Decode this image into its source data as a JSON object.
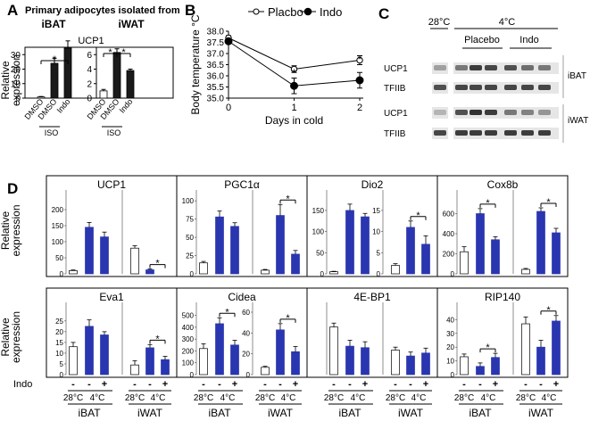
{
  "panel_labels": [
    "A",
    "B",
    "C",
    "D"
  ],
  "chart_data": [
    {
      "panel": "A",
      "type": "bar",
      "title": "Primary adipocytes isolated from",
      "subplot_title": "UCP1",
      "ylabel": "Relative expression",
      "ylim_left": [
        0,
        40
      ],
      "ylim_right": [
        0,
        8
      ],
      "yticks_left": [
        "0",
        "10",
        "20",
        "30"
      ],
      "yticks_right": [
        "0",
        "2",
        "4",
        "6"
      ],
      "groups": [
        {
          "name": "iBAT",
          "categories": [
            "DMSO",
            "DMSO",
            "Indo"
          ],
          "values": [
            0.8,
            24,
            34.5
          ],
          "errors": [
            0.3,
            3.5,
            5
          ],
          "fills": [
            "white",
            "black",
            "black"
          ]
        },
        {
          "name": "iWAT",
          "categories": [
            "DMSO",
            "DMSO",
            "Indo"
          ],
          "values": [
            1.0,
            6.3,
            3.8
          ],
          "errors": [
            0.2,
            0.5,
            0.2
          ],
          "fills": [
            "white",
            "black",
            "black"
          ]
        }
      ],
      "bracket_label": "ISO",
      "significance": "*"
    },
    {
      "panel": "B",
      "type": "line",
      "xlabel": "Days in cold",
      "ylabel": "Body temperature °C",
      "xlim": [
        0,
        2
      ],
      "ylim": [
        35.0,
        38.0
      ],
      "xticks": [
        "0",
        "1",
        "2"
      ],
      "yticks": [
        "35.0",
        "35.5",
        "36.0",
        "36.5",
        "37.0",
        "37.5",
        "38.0"
      ],
      "series": [
        {
          "name": "Placbo",
          "x": [
            0,
            1,
            2
          ],
          "y": [
            37.7,
            36.3,
            36.7
          ],
          "err": [
            0.1,
            0.15,
            0.2
          ],
          "marker": "open"
        },
        {
          "name": "Indo",
          "x": [
            0,
            1,
            2
          ],
          "y": [
            37.55,
            35.55,
            35.8
          ],
          "err": [
            0.1,
            0.35,
            0.35
          ],
          "marker": "filled"
        }
      ],
      "significance": "*"
    },
    {
      "panel": "C",
      "type": "blot",
      "headers": {
        "warm": "28°C",
        "cold": "4°C",
        "placebo": "Placebo",
        "indo": "Indo"
      },
      "rows": [
        {
          "label": "UCP1",
          "tissue": "iBAT"
        },
        {
          "label": "TFIIB",
          "tissue": ""
        },
        {
          "label": "UCP1",
          "tissue": "iWAT"
        },
        {
          "label": "TFIIB",
          "tissue": ""
        }
      ]
    },
    {
      "panel": "D",
      "type": "bar",
      "ylabel": "Relative expression",
      "indo_label": "Indo",
      "indo_marks": [
        "-",
        "-",
        "+",
        "-",
        "-",
        "+"
      ],
      "temp_labels": [
        "28°C",
        "4°C",
        "28°C",
        "4°C"
      ],
      "tissue_labels": [
        "iBAT",
        "iWAT"
      ],
      "genes": [
        {
          "name": "UCP1",
          "left": {
            "max": 250,
            "ticks": [
              "0",
              "50",
              "100",
              "150",
              "200"
            ],
            "values": [
              10,
              145,
              115
            ],
            "errors": [
              2,
              15,
              15
            ]
          },
          "right": {
            "max": 100,
            "ticks": [],
            "values": [
              32,
              5,
              0
            ],
            "errors": [
              3,
              1,
              0
            ]
          },
          "sig": "right"
        },
        {
          "name": "PGC1α",
          "left": {
            "max": 110,
            "ticks": [
              "0",
              "25",
              "50",
              "75",
              "100"
            ],
            "values": [
              15,
              78,
              65
            ],
            "errors": [
              2,
              8,
              5
            ]
          },
          "right": {
            "max": 110,
            "ticks": [],
            "values": [
              5,
              80,
              27
            ],
            "errors": [
              1,
              15,
              5
            ]
          },
          "sig": "right"
        },
        {
          "name": "Dio2",
          "left": {
            "max": 190,
            "ticks": [
              "0",
              "50",
              "100",
              "150"
            ],
            "values": [
              5,
              150,
              135
            ],
            "errors": [
              1,
              15,
              8
            ]
          },
          "right": {
            "max": 19,
            "ticks": [
              "0",
              "5",
              "10",
              "15"
            ],
            "values": [
              2,
              11,
              7
            ],
            "errors": [
              0.4,
              1.5,
              2
            ]
          },
          "sig": "right"
        },
        {
          "name": "Cox8b",
          "left": {
            "max": 800,
            "ticks": [
              "0",
              "200",
              "400",
              "600"
            ],
            "values": [
              220,
              600,
              340
            ],
            "errors": [
              50,
              50,
              30
            ]
          },
          "right": {
            "max": 90,
            "ticks": [],
            "values": [
              5,
              70,
              46
            ],
            "errors": [
              1,
              4,
              5
            ]
          },
          "sig": "both"
        },
        {
          "name": "Eva1",
          "left": {
            "max": 32,
            "ticks": [
              "0",
              "5",
              "10",
              "15",
              "20",
              "25"
            ],
            "values": [
              13,
              22.5,
              18.5
            ],
            "errors": [
              2,
              3,
              1.5
            ]
          },
          "right": {
            "max": 32,
            "ticks": [],
            "values": [
              4.5,
              12.5,
              7
            ],
            "errors": [
              2,
              1.5,
              1.5
            ]
          },
          "sig": "right"
        },
        {
          "name": "Cidea",
          "left": {
            "max": 580,
            "ticks": [
              "0",
              "100",
              "200",
              "300",
              "400",
              "500"
            ],
            "values": [
              220,
              430,
              250
            ],
            "errors": [
              40,
              50,
              40
            ]
          },
          "right": {
            "max": 66,
            "ticks": [
              "0",
              "20",
              "40",
              "60"
            ],
            "values": [
              7,
              43,
              22
            ],
            "errors": [
              1,
              6,
              5
            ]
          },
          "sig": "both"
        },
        {
          "name": "4E-BP1",
          "left": {
            "max": 14,
            "ticks": [],
            "values": [
              9.7,
              5.8,
              5.5
            ],
            "errors": [
              0.8,
              1.2,
              1.2
            ]
          },
          "right": {
            "max": 14,
            "ticks": [],
            "values": [
              5,
              3.8,
              4.4
            ],
            "errors": [
              0.6,
              0.8,
              1
            ]
          },
          "sig": "none"
        },
        {
          "name": "RIP140",
          "left": {
            "max": 50,
            "ticks": [
              "0",
              "10",
              "20",
              "30",
              "40"
            ],
            "values": [
              13,
              6,
              12.5
            ],
            "errors": [
              2,
              2.5,
              3
            ]
          },
          "right": {
            "max": 50,
            "ticks": [],
            "values": [
              37,
              20,
              39
            ],
            "errors": [
              5,
              5,
              4
            ]
          },
          "sig": "both"
        }
      ],
      "significance": "*"
    }
  ]
}
